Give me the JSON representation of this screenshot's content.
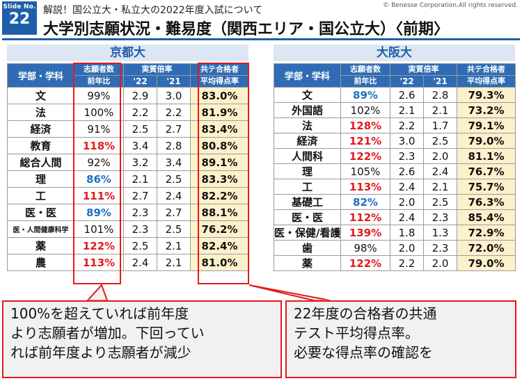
{
  "header": {
    "badge_label": "Slide No.",
    "slide_number": "22",
    "subtitle": "解説！国公立大・私立大の2022年度入試について",
    "copyright": "© Benesse Corporation.All rights reserved.",
    "title": "大学別志願状況・難易度（関西エリア・国公立大）〈前期〉"
  },
  "table_headers": {
    "dept": "学部・学科",
    "applicants_l1": "志願者数",
    "applicants_l2": "前年比",
    "ratio": "実質倍率",
    "year22": "'22",
    "year21": "'21",
    "score_l1": "共テ合格者",
    "score_l2": "平均得点率"
  },
  "kyoto": {
    "name": "京都大",
    "rows": [
      {
        "dept": "文",
        "applicants": "99%",
        "trend": "same",
        "r22": "2.9",
        "r21": "3.0",
        "score": "83.0%"
      },
      {
        "dept": "法",
        "applicants": "100%",
        "trend": "same",
        "r22": "2.2",
        "r21": "2.2",
        "score": "81.9%"
      },
      {
        "dept": "経済",
        "applicants": "91%",
        "trend": "same",
        "r22": "2.5",
        "r21": "2.7",
        "score": "83.4%"
      },
      {
        "dept": "教育",
        "applicants": "118%",
        "trend": "up",
        "r22": "3.4",
        "r21": "2.8",
        "score": "80.8%"
      },
      {
        "dept": "総合人間",
        "applicants": "92%",
        "trend": "same",
        "r22": "3.2",
        "r21": "3.4",
        "score": "89.1%"
      },
      {
        "dept": "理",
        "applicants": "86%",
        "trend": "down",
        "r22": "2.1",
        "r21": "2.5",
        "score": "83.3%"
      },
      {
        "dept": "工",
        "applicants": "111%",
        "trend": "up",
        "r22": "2.7",
        "r21": "2.4",
        "score": "82.2%"
      },
      {
        "dept": "医・医",
        "applicants": "89%",
        "trend": "down",
        "r22": "2.3",
        "r21": "2.7",
        "score": "88.1%"
      },
      {
        "dept": "医・人間健康科学",
        "applicants": "101%",
        "trend": "same",
        "r22": "2.3",
        "r21": "2.5",
        "score": "76.2%",
        "small": true
      },
      {
        "dept": "薬",
        "applicants": "122%",
        "trend": "up",
        "r22": "2.5",
        "r21": "2.1",
        "score": "82.4%"
      },
      {
        "dept": "農",
        "applicants": "113%",
        "trend": "up",
        "r22": "2.4",
        "r21": "2.1",
        "score": "81.0%"
      }
    ]
  },
  "osaka": {
    "name": "大阪大",
    "rows": [
      {
        "dept": "文",
        "applicants": "89%",
        "trend": "down",
        "r22": "2.6",
        "r21": "2.8",
        "score": "79.3%"
      },
      {
        "dept": "外国語",
        "applicants": "102%",
        "trend": "same",
        "r22": "2.1",
        "r21": "2.1",
        "score": "73.2%"
      },
      {
        "dept": "法",
        "applicants": "128%",
        "trend": "up",
        "r22": "2.2",
        "r21": "1.7",
        "score": "79.1%"
      },
      {
        "dept": "経済",
        "applicants": "121%",
        "trend": "up",
        "r22": "3.0",
        "r21": "2.5",
        "score": "79.0%"
      },
      {
        "dept": "人間科",
        "applicants": "122%",
        "trend": "up",
        "r22": "2.3",
        "r21": "2.0",
        "score": "81.1%"
      },
      {
        "dept": "理",
        "applicants": "105%",
        "trend": "same",
        "r22": "2.6",
        "r21": "2.4",
        "score": "76.7%"
      },
      {
        "dept": "工",
        "applicants": "113%",
        "trend": "up",
        "r22": "2.4",
        "r21": "2.1",
        "score": "75.7%"
      },
      {
        "dept": "基礎工",
        "applicants": "82%",
        "trend": "down",
        "r22": "2.0",
        "r21": "2.5",
        "score": "76.3%"
      },
      {
        "dept": "医・医",
        "applicants": "112%",
        "trend": "up",
        "r22": "2.4",
        "r21": "2.3",
        "score": "85.4%"
      },
      {
        "dept": "医・保健/看護",
        "applicants": "139%",
        "trend": "up",
        "r22": "1.8",
        "r21": "1.3",
        "score": "72.9%"
      },
      {
        "dept": "歯",
        "applicants": "98%",
        "trend": "same",
        "r22": "2.0",
        "r21": "2.3",
        "score": "72.0%"
      },
      {
        "dept": "薬",
        "applicants": "122%",
        "trend": "up",
        "r22": "2.2",
        "r21": "2.0",
        "score": "79.0%"
      }
    ]
  },
  "callouts": {
    "left": [
      "100%を超えていれば前年度",
      "より志願者が増加。下回ってい",
      "れば前年度より志願者が減少"
    ],
    "right": [
      "22年度の合格者の共通",
      "テスト平均得点率。",
      "必要な得点率の確認を"
    ]
  },
  "colors": {
    "header_blue": "#2f6cb5",
    "accent_red": "#e21a1a",
    "increase_red": "#e21a1a",
    "decrease_blue": "#1f6fc2",
    "score_bg": "#fdf1cc"
  }
}
